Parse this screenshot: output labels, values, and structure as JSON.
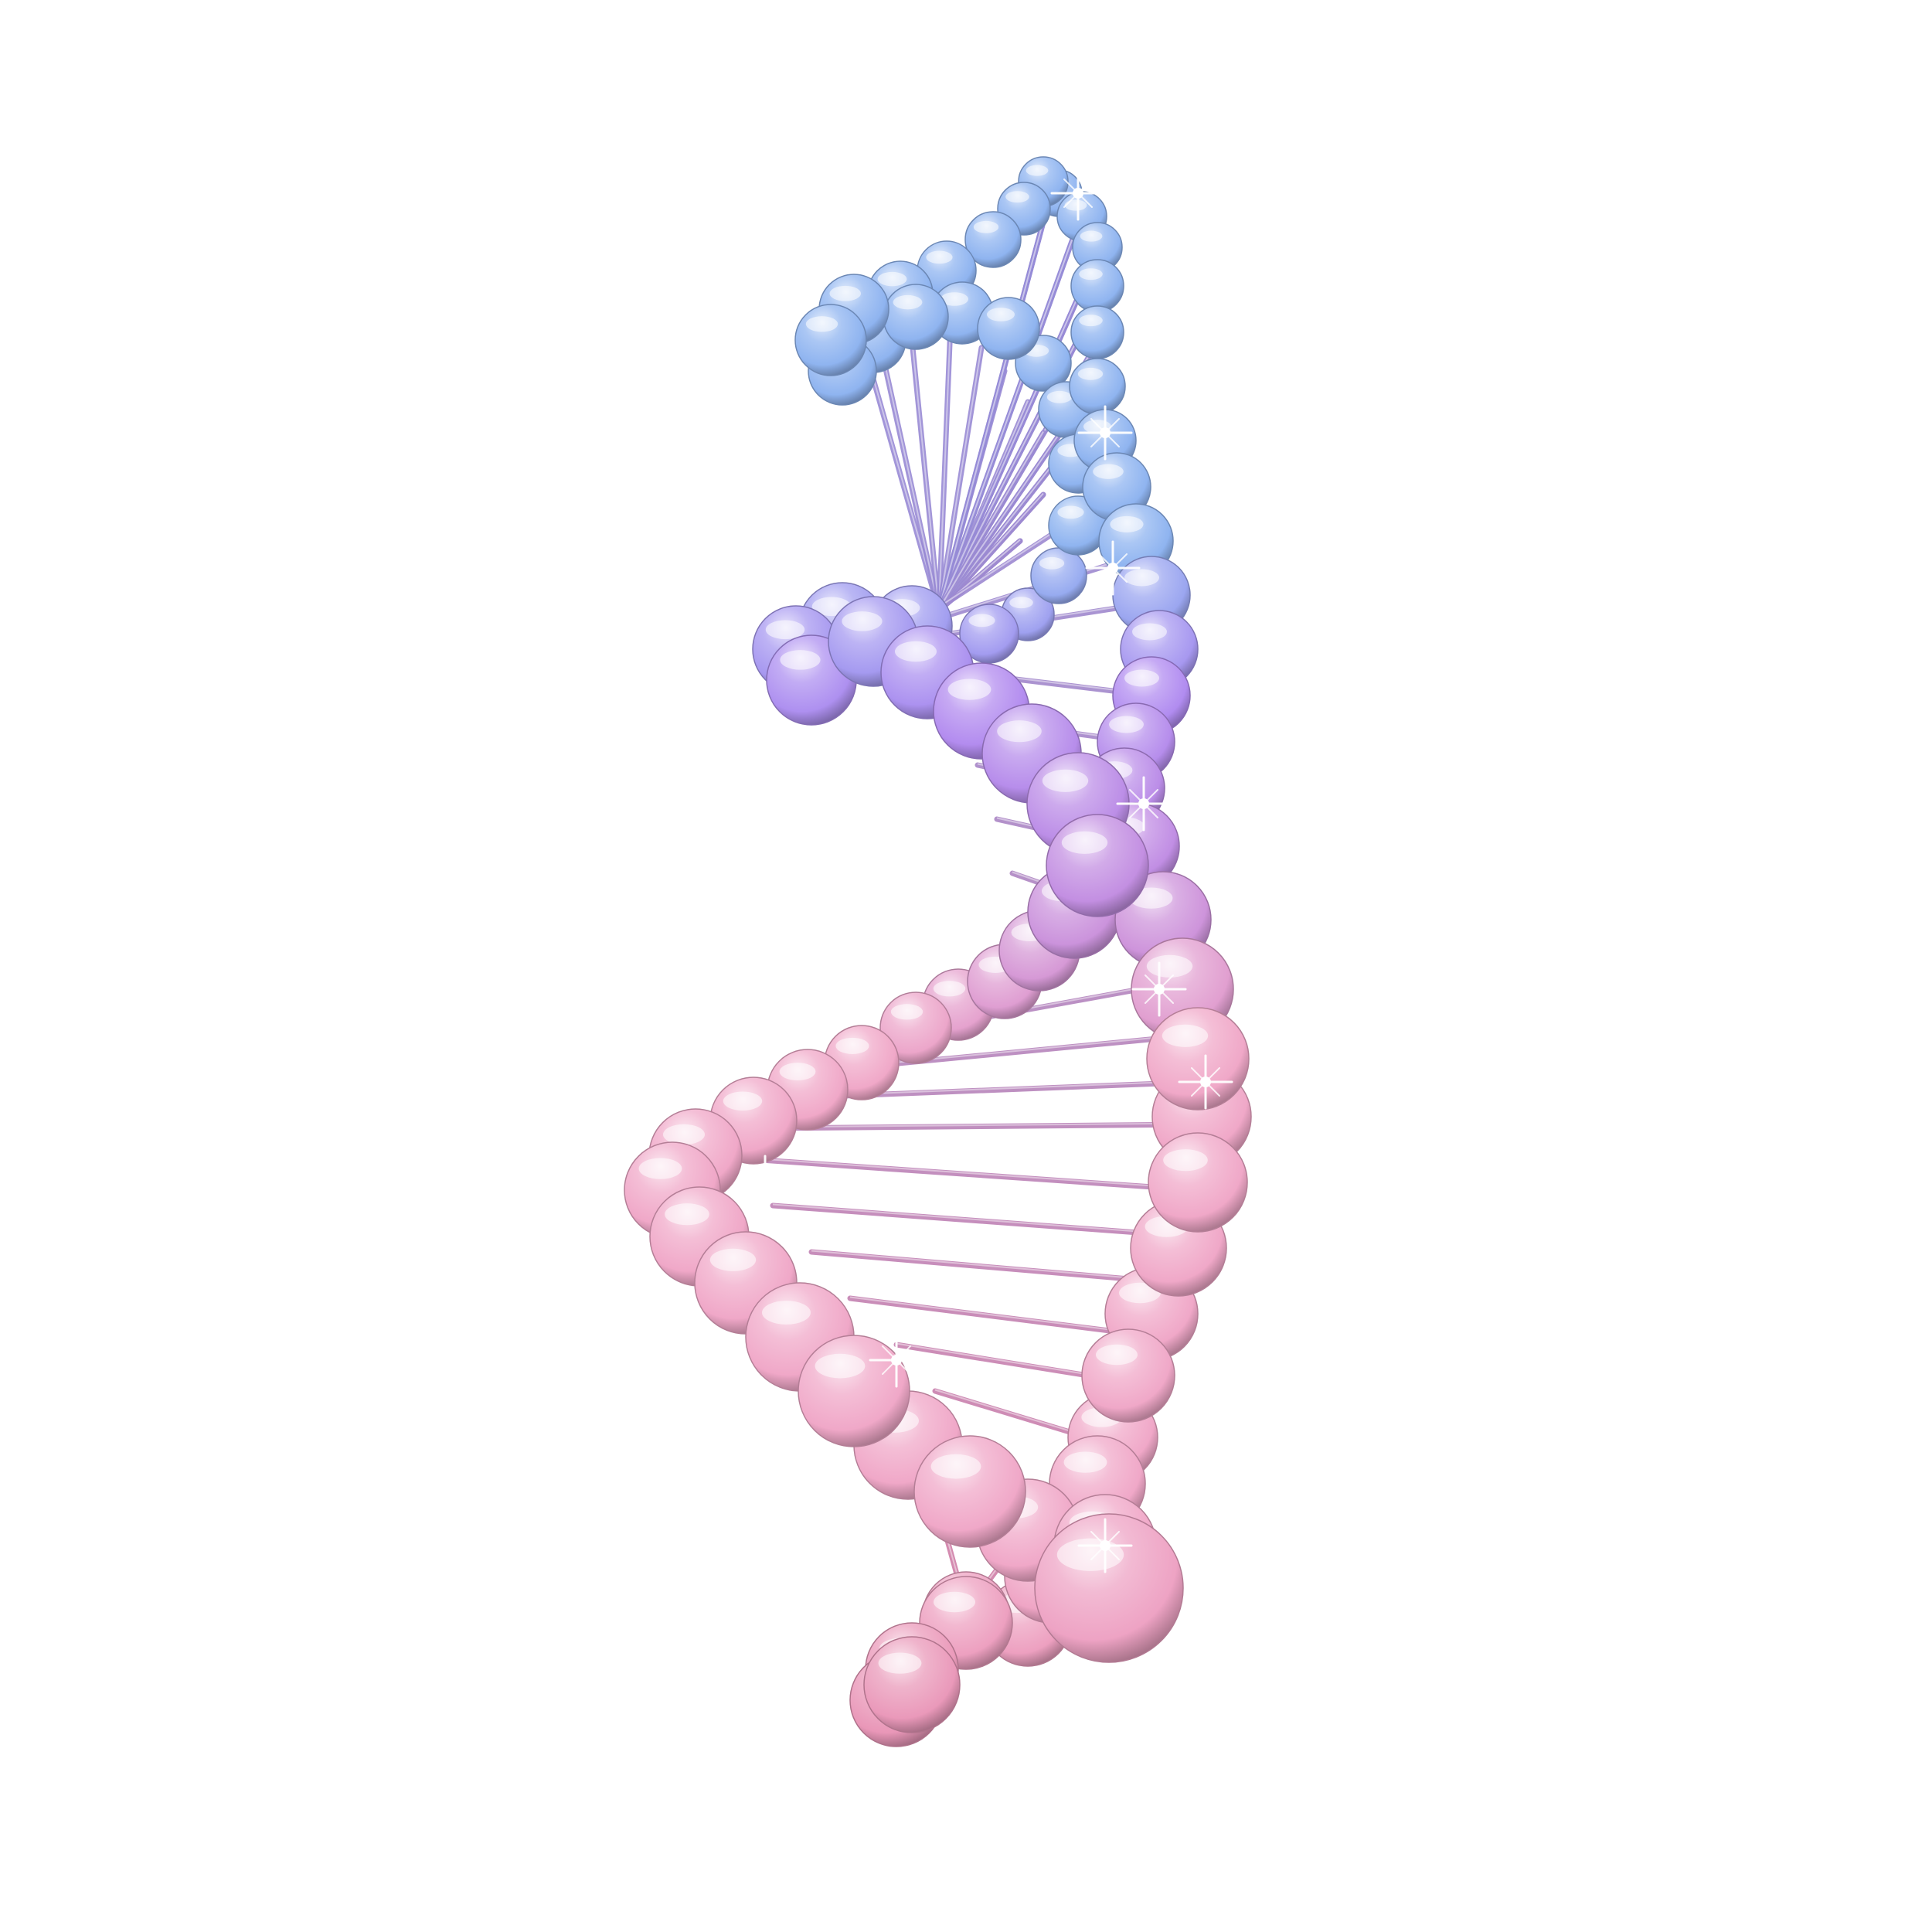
{
  "scene": {
    "subject": "dna-double-helix",
    "background_color": "#ffffff",
    "style": "glossy glass spheres with thin connecting rods and sparkle highlights",
    "colors": {
      "top": "#8fb4f0",
      "upper_mid": "#b18cf0",
      "middle": "#c58fe0",
      "lower": "#f0a8c8",
      "bottom": "#e68fb0",
      "rod_top": "#8a8de0",
      "rod_bottom": "#d07fa8",
      "sparkle": "#ffffff"
    },
    "icons": [
      "sphere-node",
      "rod",
      "sparkle"
    ]
  }
}
